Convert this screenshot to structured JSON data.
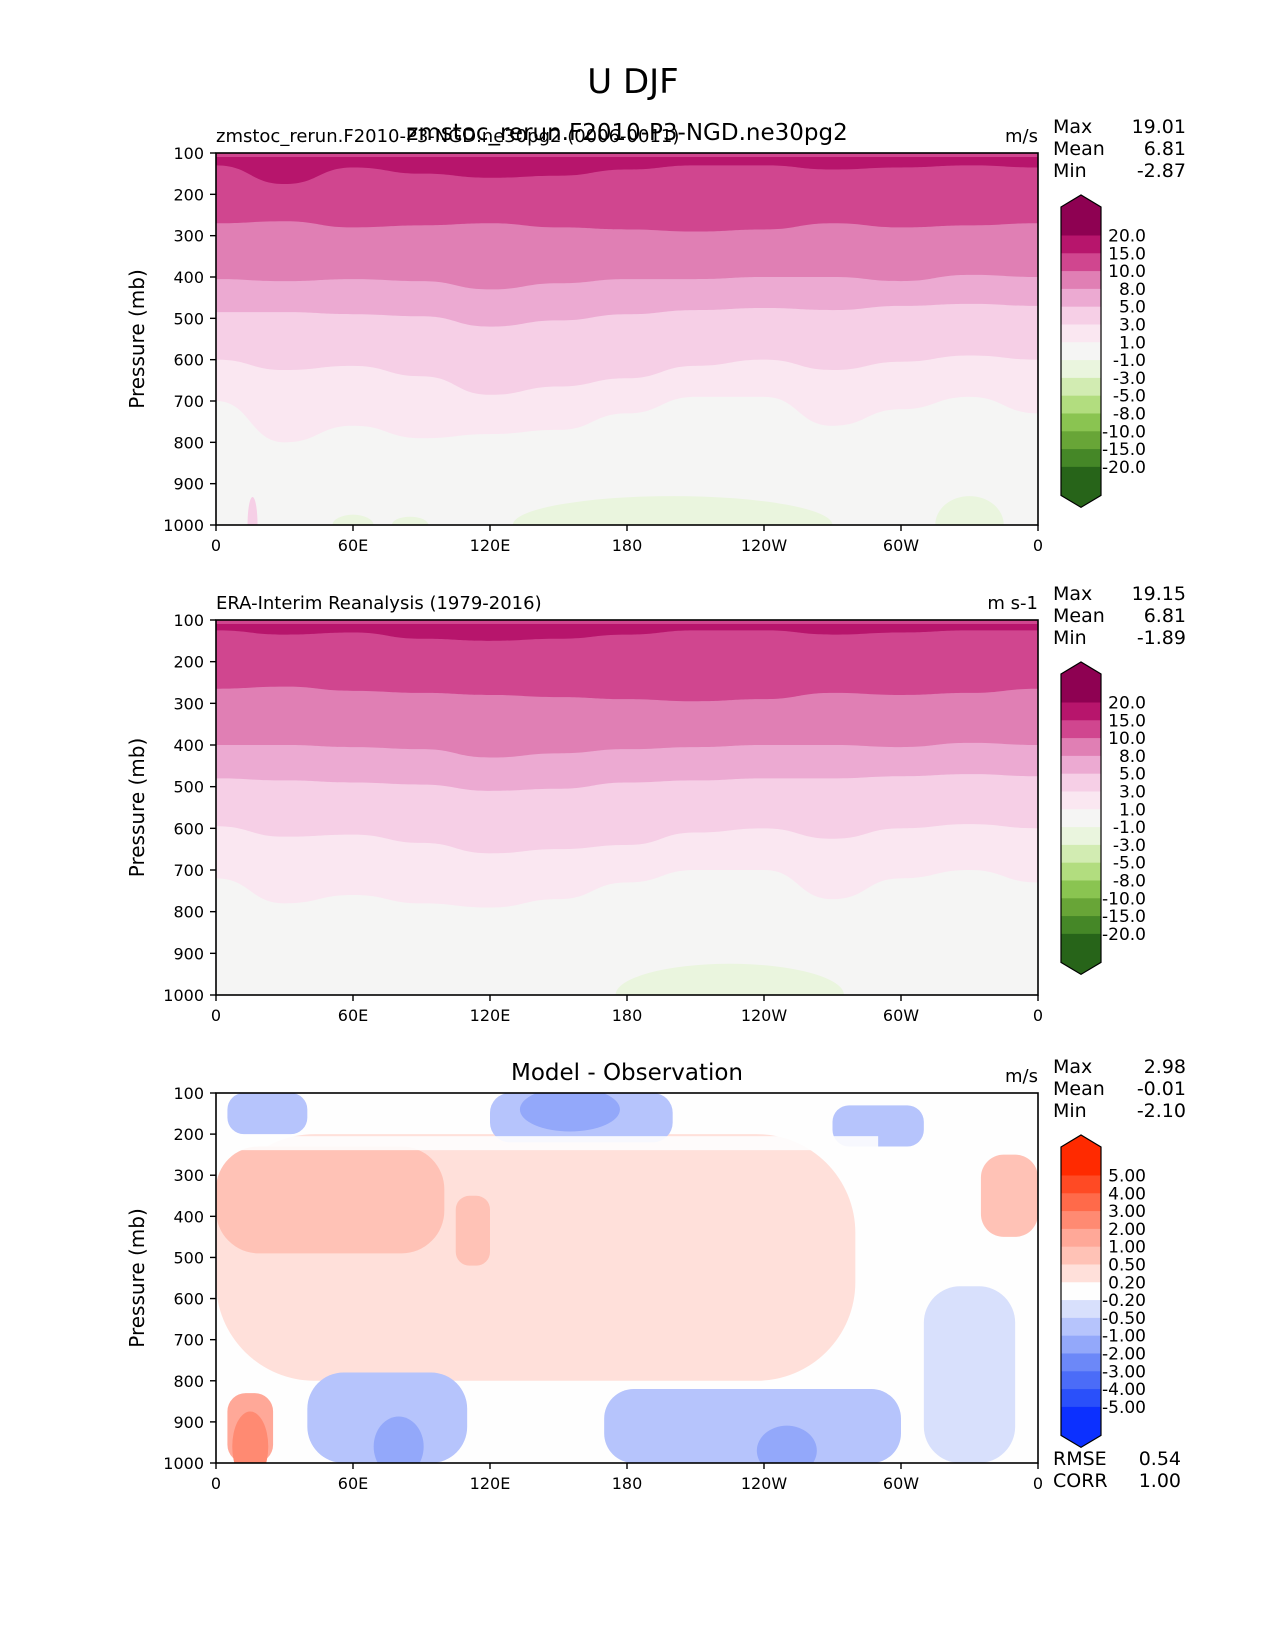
{
  "figure": {
    "title": "U DJF"
  },
  "chart_data": [
    {
      "type": "heatmap",
      "panel": "test",
      "title_left": "zmstoc_rerun.F2010-P3-NGD.ne30pg2 (0006-0011)",
      "title_center": "zmstoc_rerun.F2010-P3-NGD.ne30pg2",
      "title_right": "m/s",
      "xlabel": "",
      "ylabel": "Pressure (mb)",
      "x_ticks": [
        0,
        60,
        120,
        180,
        240,
        300,
        360
      ],
      "x_tick_labels": [
        "0",
        "60E",
        "120E",
        "180",
        "120W",
        "60W",
        "0"
      ],
      "xlim": [
        0,
        360
      ],
      "y_ticks": [
        100,
        200,
        300,
        400,
        500,
        600,
        700,
        800,
        900,
        1000
      ],
      "y_tick_labels": [
        "100",
        "200",
        "300",
        "400",
        "500",
        "600",
        "700",
        "800",
        "900",
        "1000"
      ],
      "ylim": [
        1000,
        100
      ],
      "stats": [
        {
          "label": "Max",
          "value": "19.01"
        },
        {
          "label": "Mean",
          "value": "6.81"
        },
        {
          "label": "Min",
          "value": "-2.87"
        }
      ],
      "colorbar": {
        "levels": [
          "20.0",
          "15.0",
          "10.0",
          "8.0",
          "5.0",
          "3.0",
          "1.0",
          "-1.0",
          "-3.0",
          "-5.0",
          "-8.0",
          "-10.0",
          "-15.0",
          "-20.0"
        ],
        "colors": [
          "#8e0152",
          "#b7156c",
          "#d0468f",
          "#e07fb4",
          "#ecaad2",
          "#f6cfe6",
          "#fae7f1",
          "#f5f5f4",
          "#eaf5de",
          "#d2ecb2",
          "#b2dd7f",
          "#8ac451",
          "#68a537",
          "#458727",
          "#276419"
        ]
      },
      "bands": [
        {
          "value_range": "15-20",
          "top": [
            100,
            100,
            100,
            100,
            100,
            100,
            100,
            100,
            100,
            100,
            100,
            100,
            100
          ],
          "bottom": [
            130,
            175,
            135,
            150,
            160,
            155,
            140,
            130,
            130,
            140,
            135,
            130,
            135
          ]
        },
        {
          "value_range": "10-15",
          "top": [
            100
          ],
          "bottom": [
            270,
            265,
            280,
            275,
            270,
            280,
            285,
            290,
            285,
            270,
            280,
            275,
            270
          ]
        },
        {
          "value_range": "8-10",
          "bottom": [
            405,
            410,
            405,
            410,
            430,
            415,
            405,
            405,
            400,
            400,
            410,
            395,
            400
          ]
        },
        {
          "value_range": "5-8",
          "bottom": [
            485,
            485,
            490,
            495,
            520,
            505,
            490,
            480,
            475,
            480,
            470,
            465,
            470
          ]
        },
        {
          "value_range": "3-5",
          "bottom": [
            600,
            625,
            615,
            640,
            685,
            665,
            645,
            615,
            600,
            625,
            605,
            590,
            600
          ]
        },
        {
          "value_range": "1-3",
          "bottom": [
            700,
            800,
            760,
            790,
            780,
            770,
            730,
            690,
            690,
            760,
            720,
            690,
            730
          ]
        },
        {
          "value_range": "-1-1",
          "bottom": [
            850,
            880,
            895,
            880,
            910,
            900,
            860,
            790,
            785,
            850,
            830,
            800,
            850
          ]
        }
      ]
    },
    {
      "type": "heatmap",
      "panel": "reference",
      "title_left": "ERA-Interim Reanalysis (1979-2016)",
      "title_right": "m s-1",
      "ylabel": "Pressure (mb)",
      "x_ticks": [
        0,
        60,
        120,
        180,
        240,
        300,
        360
      ],
      "x_tick_labels": [
        "0",
        "60E",
        "120E",
        "180",
        "120W",
        "60W",
        "0"
      ],
      "xlim": [
        0,
        360
      ],
      "y_ticks": [
        100,
        200,
        300,
        400,
        500,
        600,
        700,
        800,
        900,
        1000
      ],
      "y_tick_labels": [
        "100",
        "200",
        "300",
        "400",
        "500",
        "600",
        "700",
        "800",
        "900",
        "1000"
      ],
      "ylim": [
        1000,
        100
      ],
      "stats": [
        {
          "label": "Max",
          "value": "19.15"
        },
        {
          "label": "Mean",
          "value": "6.81"
        },
        {
          "label": "Min",
          "value": "-1.89"
        }
      ],
      "colorbar": {
        "levels": [
          "20.0",
          "15.0",
          "10.0",
          "8.0",
          "5.0",
          "3.0",
          "1.0",
          "-1.0",
          "-3.0",
          "-5.0",
          "-8.0",
          "-10.0",
          "-15.0",
          "-20.0"
        ],
        "colors": [
          "#8e0152",
          "#b7156c",
          "#d0468f",
          "#e07fb4",
          "#ecaad2",
          "#f6cfe6",
          "#fae7f1",
          "#f5f5f4",
          "#eaf5de",
          "#d2ecb2",
          "#b2dd7f",
          "#8ac451",
          "#68a537",
          "#458727",
          "#276419"
        ]
      },
      "bands": [
        {
          "value_range": "15-20",
          "bottom": [
            125,
            135,
            130,
            145,
            150,
            145,
            135,
            125,
            125,
            135,
            130,
            125,
            125
          ]
        },
        {
          "value_range": "10-15",
          "bottom": [
            265,
            260,
            270,
            275,
            280,
            285,
            290,
            295,
            290,
            275,
            280,
            275,
            265
          ]
        },
        {
          "value_range": "8-10",
          "bottom": [
            400,
            400,
            405,
            410,
            430,
            420,
            410,
            405,
            400,
            400,
            405,
            395,
            400
          ]
        },
        {
          "value_range": "5-8",
          "bottom": [
            480,
            485,
            490,
            495,
            510,
            505,
            490,
            485,
            480,
            480,
            475,
            470,
            475
          ]
        },
        {
          "value_range": "3-5",
          "bottom": [
            595,
            620,
            615,
            635,
            660,
            650,
            640,
            610,
            600,
            625,
            600,
            590,
            600
          ]
        },
        {
          "value_range": "1-3",
          "bottom": [
            720,
            780,
            760,
            780,
            790,
            770,
            730,
            700,
            700,
            770,
            720,
            700,
            730
          ]
        },
        {
          "value_range": "-1-1",
          "bottom": [
            860,
            960,
            930,
            940,
            950,
            930,
            880,
            830,
            830,
            900,
            860,
            830,
            870
          ]
        }
      ]
    },
    {
      "type": "heatmap",
      "panel": "difference",
      "title_center": "Model - Observation",
      "title_right": "m/s",
      "ylabel": "Pressure (mb)",
      "x_ticks": [
        0,
        60,
        120,
        180,
        240,
        300,
        360
      ],
      "x_tick_labels": [
        "0",
        "60E",
        "120E",
        "180",
        "120W",
        "60W",
        "0"
      ],
      "xlim": [
        0,
        360
      ],
      "y_ticks": [
        100,
        200,
        300,
        400,
        500,
        600,
        700,
        800,
        900,
        1000
      ],
      "y_tick_labels": [
        "100",
        "200",
        "300",
        "400",
        "500",
        "600",
        "700",
        "800",
        "900",
        "1000"
      ],
      "ylim": [
        1000,
        100
      ],
      "stats": [
        {
          "label": "Max",
          "value": "2.98"
        },
        {
          "label": "Mean",
          "value": "-0.01"
        },
        {
          "label": "Min",
          "value": "-2.10"
        }
      ],
      "metrics": [
        {
          "label": "RMSE",
          "value": "0.54"
        },
        {
          "label": "CORR",
          "value": "1.00"
        }
      ],
      "colorbar": {
        "levels": [
          "5.00",
          "4.00",
          "3.00",
          "2.00",
          "1.00",
          "0.50",
          "0.20",
          "-0.20",
          "-0.50",
          "-1.00",
          "-2.00",
          "-3.00",
          "-4.00",
          "-5.00"
        ],
        "colors": [
          "#ff2a00",
          "#ff4a24",
          "#ff6a4a",
          "#ff8a72",
          "#ffa898",
          "#ffc2b6",
          "#ffe0da",
          "#fefefe",
          "#d8e0fc",
          "#b6c4fc",
          "#93a8fa",
          "#6c88f8",
          "#4b6cf8",
          "#2a50fa",
          "#0c30ff"
        ]
      },
      "regions": [
        {
          "name": "upper-blue-west",
          "value_range": "-0.5 to -1.0",
          "lon": [
            5,
            40
          ],
          "p": [
            100,
            200
          ]
        },
        {
          "name": "upper-blue-dateline",
          "value_range": "-1.0 to -2.0",
          "lon": [
            120,
            200
          ],
          "p": [
            100,
            220
          ]
        },
        {
          "name": "upper-blue-east",
          "value_range": "-0.5 to -1.0",
          "lon": [
            270,
            310
          ],
          "p": [
            130,
            230
          ]
        },
        {
          "name": "mid-red-west",
          "value_range": "0.5 to 1.0",
          "lon": [
            0,
            100
          ],
          "p": [
            230,
            490
          ]
        },
        {
          "name": "mid-red-120E",
          "value_range": "0.5 to 1.0",
          "lon": [
            105,
            120
          ],
          "p": [
            350,
            520
          ]
        },
        {
          "name": "mid-red-east",
          "value_range": "0.5 to 1.0",
          "lon": [
            335,
            360
          ],
          "p": [
            250,
            450
          ]
        },
        {
          "name": "mid-pink-broad",
          "value_range": "0.2 to 0.5",
          "lon": [
            0,
            280
          ],
          "p": [
            200,
            800
          ]
        },
        {
          "name": "low-red-20E",
          "value_range": "1.0 to 2.0",
          "lon": [
            5,
            25
          ],
          "p": [
            830,
            1000
          ]
        },
        {
          "name": "low-blue-60E",
          "value_range": "-0.5 to -2.0",
          "lon": [
            40,
            110
          ],
          "p": [
            780,
            1000
          ]
        },
        {
          "name": "low-blue-120W",
          "value_range": "-0.5 to -2.0",
          "lon": [
            170,
            300
          ],
          "p": [
            820,
            1000
          ]
        },
        {
          "name": "low-blue-east",
          "value_range": "-0.2 to -1.0",
          "lon": [
            310,
            350
          ],
          "p": [
            570,
            1000
          ]
        }
      ]
    }
  ]
}
